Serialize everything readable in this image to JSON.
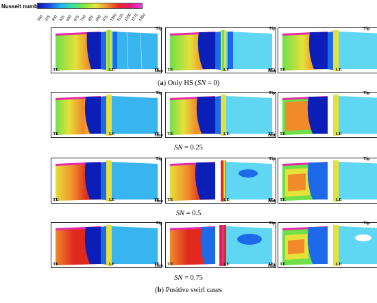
{
  "legend": {
    "title": "Nusselt number",
    "ticks": [
      "300",
      "375",
      "450",
      "525",
      "600",
      "675",
      "750",
      "825",
      "900",
      "975",
      "1050",
      "1125",
      "1200",
      "1275",
      "1350"
    ]
  },
  "blade_labels": {
    "tip": "Tip",
    "hub": "Hub",
    "te": "TE",
    "le": "LE"
  },
  "captions": {
    "a_prefix": "(",
    "a_letter": "a",
    "a_text": ") Only HS (",
    "a_sn": "SN",
    "a_end": " = 0)",
    "sn1_sym": "SN",
    "sn1_val": " = 0.25",
    "sn2_sym": "SN",
    "sn2_val": " = 0.5",
    "sn3_sym": "SN",
    "sn3_val": " = 0.75",
    "b_prefix": "(",
    "b_letter": "b",
    "b_text": ") Positive swirl cases"
  },
  "colors": {
    "deep_blue": "#0b1fb8",
    "mid_blue": "#1c6ae8",
    "light_blue": "#38b4ef",
    "cyan": "#5fd6f2",
    "green": "#6fe04a",
    "yellow": "#e6e03a",
    "orange": "#f08a2a",
    "red": "#e0281e",
    "magenta": "#e32aa8"
  }
}
